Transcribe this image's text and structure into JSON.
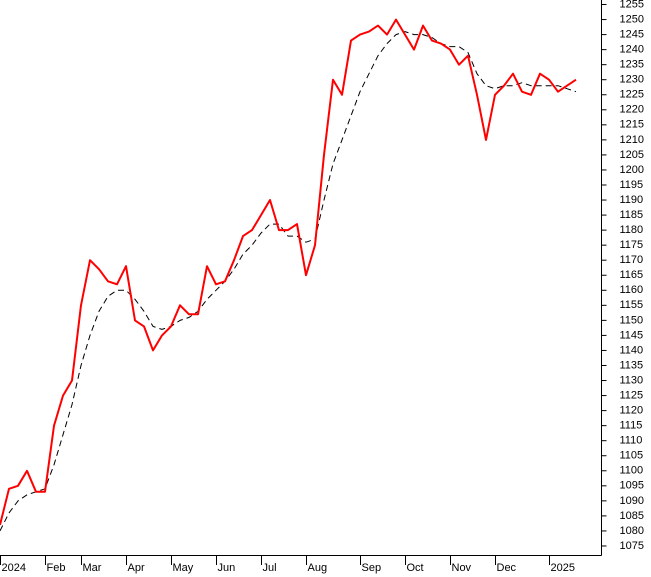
{
  "chart_data": {
    "type": "line",
    "categories": [
      "2024",
      null,
      null,
      null,
      null,
      "Feb",
      null,
      null,
      null,
      "Mar",
      null,
      null,
      null,
      null,
      "Apr",
      null,
      null,
      null,
      null,
      "May",
      null,
      null,
      null,
      null,
      "Jun",
      null,
      null,
      null,
      null,
      "Jul",
      null,
      null,
      null,
      null,
      "Aug",
      null,
      null,
      null,
      null,
      null,
      "Sep",
      null,
      null,
      null,
      null,
      "Oct",
      null,
      null,
      null,
      null,
      "Nov",
      null,
      null,
      null,
      null,
      "Dec",
      null,
      null,
      null,
      null,
      null,
      "2025",
      null,
      null,
      null
    ],
    "series": [
      {
        "color": "#ff0000",
        "line_style": "solid",
        "values": [
          1082,
          1094,
          1095,
          1100,
          1093,
          1093,
          1115,
          1125,
          1130,
          1155,
          1170,
          1167,
          1163,
          1162,
          1168,
          1150,
          1148,
          1140,
          1145,
          1148,
          1155,
          1152,
          1152,
          1168,
          1162,
          1163,
          1170,
          1178,
          1180,
          1185,
          1190,
          1180,
          1180,
          1182,
          1165,
          1175,
          1205,
          1230,
          1225,
          1243,
          1245,
          1246,
          1248,
          1245,
          1250,
          1245,
          1240,
          1248,
          1243,
          1242,
          1240,
          1235,
          1238,
          1225,
          1210,
          1225,
          1228,
          1232,
          1226,
          1225,
          1232,
          1230,
          1226,
          1228,
          1230
        ]
      },
      {
        "color": "#000000",
        "line_style": "dashed",
        "values": [
          1080,
          1086,
          1090,
          1092,
          1093,
          1094,
          1102,
          1112,
          1122,
          1135,
          1145,
          1153,
          1158,
          1160,
          1160,
          1157,
          1153,
          1148,
          1147,
          1148,
          1150,
          1151,
          1153,
          1157,
          1160,
          1163,
          1167,
          1172,
          1175,
          1179,
          1182,
          1182,
          1178,
          1178,
          1176,
          1177,
          1190,
          1202,
          1210,
          1218,
          1226,
          1232,
          1238,
          1242,
          1245,
          1246,
          1245,
          1245,
          1244,
          1242,
          1241,
          1241,
          1239,
          1232,
          1228,
          1227,
          1228,
          1228,
          1229,
          1228,
          1228,
          1228,
          1228,
          1227,
          1226
        ]
      }
    ],
    "ylim": [
      1072,
      1256.5
    ],
    "yticks": [
      1075,
      1080,
      1085,
      1090,
      1095,
      1100,
      1105,
      1110,
      1115,
      1120,
      1125,
      1130,
      1135,
      1140,
      1145,
      1150,
      1155,
      1160,
      1165,
      1170,
      1175,
      1180,
      1185,
      1190,
      1195,
      1200,
      1205,
      1210,
      1215,
      1220,
      1225,
      1230,
      1235,
      1240,
      1245,
      1250,
      1255
    ],
    "y_axis_side": "right",
    "grid": false
  }
}
